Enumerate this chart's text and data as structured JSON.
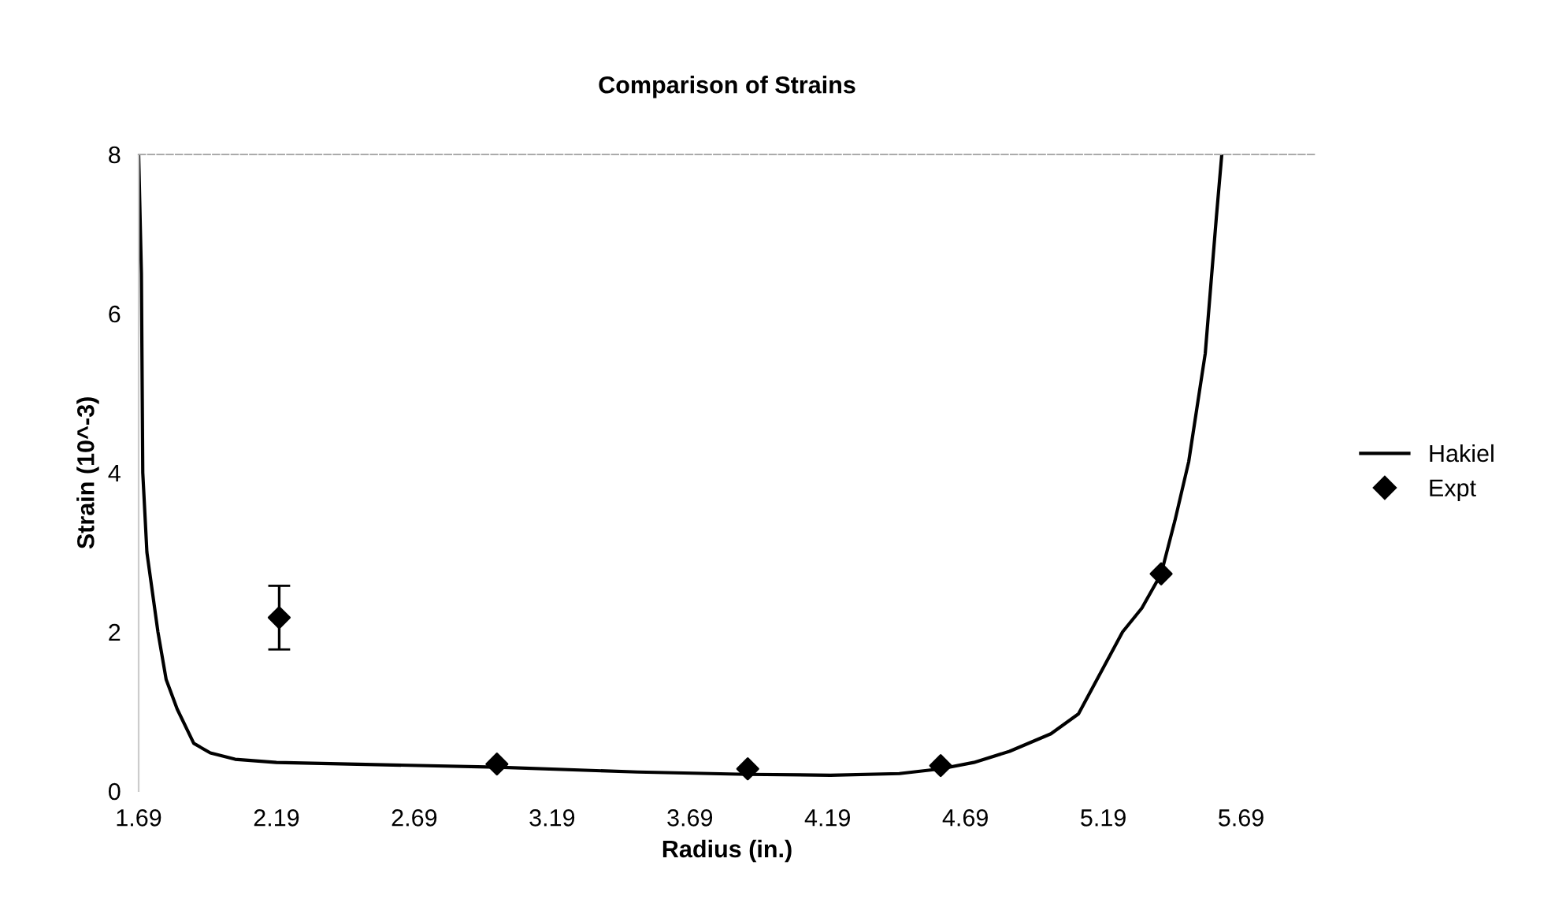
{
  "chart_data": {
    "type": "line",
    "title": "Comparison of Strains",
    "xlabel": "Radius (in.)",
    "ylabel": "Strain (10^-3)",
    "xlim": [
      1.69,
      5.96
    ],
    "xticks": [
      1.69,
      2.19,
      2.69,
      3.19,
      3.69,
      4.19,
      4.69,
      5.19,
      5.69
    ],
    "ylim": [
      0,
      8
    ],
    "yticks": [
      0,
      2,
      4,
      6,
      8
    ],
    "legend": "right",
    "series": [
      {
        "name": "Hakiel",
        "color": "#000000",
        "marker": "none",
        "line_style": "solid",
        "x": [
          1.69,
          1.7,
          1.705,
          1.72,
          1.76,
          1.79,
          1.83,
          1.89,
          1.95,
          2.04,
          2.19,
          2.99,
          3.5,
          3.9,
          4.2,
          4.45,
          4.6,
          4.72,
          4.85,
          5.0,
          5.1,
          5.26,
          5.33,
          5.4,
          5.45,
          5.5,
          5.56,
          5.6,
          5.62
        ],
        "values": [
          8,
          6.5,
          4,
          3,
          2,
          1.4,
          1.03,
          0.6,
          0.48,
          0.4,
          0.36,
          0.3,
          0.24,
          0.21,
          0.2,
          0.22,
          0.28,
          0.36,
          0.5,
          0.72,
          0.97,
          2.0,
          2.3,
          2.73,
          3.4,
          4.14,
          5.5,
          7.2,
          8
        ]
      },
      {
        "name": "Expt",
        "type": "scatter",
        "color": "#000000",
        "marker": "diamond",
        "x": [
          2.2,
          2.99,
          3.9,
          4.6,
          5.4
        ],
        "values": [
          2.18,
          0.34,
          0.28,
          0.32,
          2.73
        ],
        "errors": [
          0.4,
          null,
          null,
          null,
          null
        ]
      }
    ]
  }
}
